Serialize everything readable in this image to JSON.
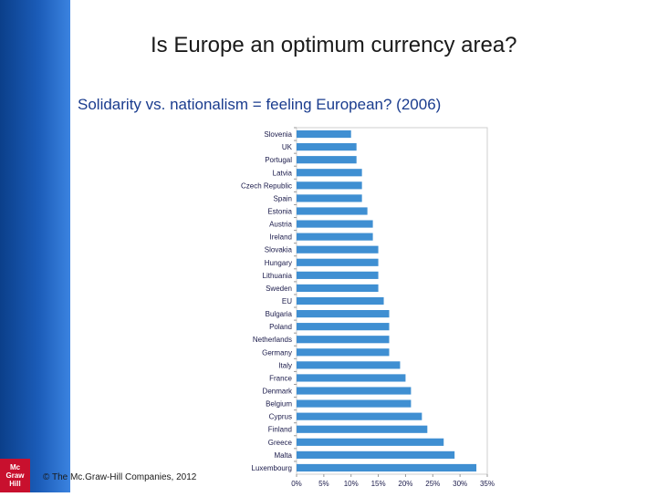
{
  "slide": {
    "title": "Is Europe an optimum currency area?",
    "subtitle": "Solidarity vs. nationalism = feeling European? (2006)",
    "copyright": "© The Mc.Graw-Hill Companies, 2012",
    "logo_lines": [
      "Mc",
      "Graw",
      "Hill"
    ],
    "sidebar_color": "#1b5cb8",
    "logo_color": "#c8102e"
  },
  "chart_data": {
    "type": "bar",
    "orientation": "horizontal",
    "title": "",
    "xlabel": "",
    "ylabel": "",
    "categories": [
      "Slovenia",
      "UK",
      "Portugal",
      "Latvia",
      "Czech Republic",
      "Spain",
      "Estonia",
      "Austria",
      "Ireland",
      "Slovakia",
      "Hungary",
      "Lithuania",
      "Sweden",
      "EU",
      "Bulgaria",
      "Poland",
      "Netherlands",
      "Germany",
      "Italy",
      "France",
      "Denmark",
      "Belgium",
      "Cyprus",
      "Finland",
      "Greece",
      "Malta",
      "Luxembourg"
    ],
    "values": [
      10,
      11,
      11,
      12,
      12,
      12,
      13,
      14,
      14,
      15,
      15,
      15,
      15,
      16,
      17,
      17,
      17,
      17,
      19,
      20,
      21,
      21,
      23,
      24,
      27,
      29,
      33
    ],
    "xlim": [
      0,
      35
    ],
    "xticks": [
      "0%",
      "5%",
      "10%",
      "15%",
      "20%",
      "25%",
      "30%",
      "35%"
    ],
    "grid": false,
    "bar_color": "#3f8fd2"
  }
}
